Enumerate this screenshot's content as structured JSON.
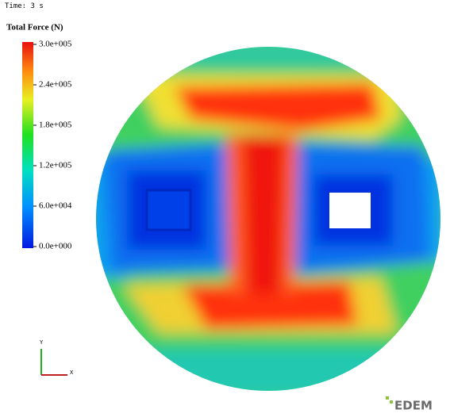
{
  "header": {
    "time": "Time: 3 s"
  },
  "legend": {
    "title": "Total Force (N)",
    "range": [
      0,
      300000
    ],
    "ticks": [
      {
        "value": 300000,
        "label": "3.0e+005"
      },
      {
        "value": 240000,
        "label": "2.4e+005"
      },
      {
        "value": 180000,
        "label": "1.8e+005"
      },
      {
        "value": 120000,
        "label": "1.2e+005"
      },
      {
        "value": 60000,
        "label": "6.0e+004"
      },
      {
        "value": 0,
        "label": "0.0e+000"
      }
    ]
  },
  "axes": {
    "y": "Y",
    "x": "X"
  },
  "logo": "EDEM"
}
